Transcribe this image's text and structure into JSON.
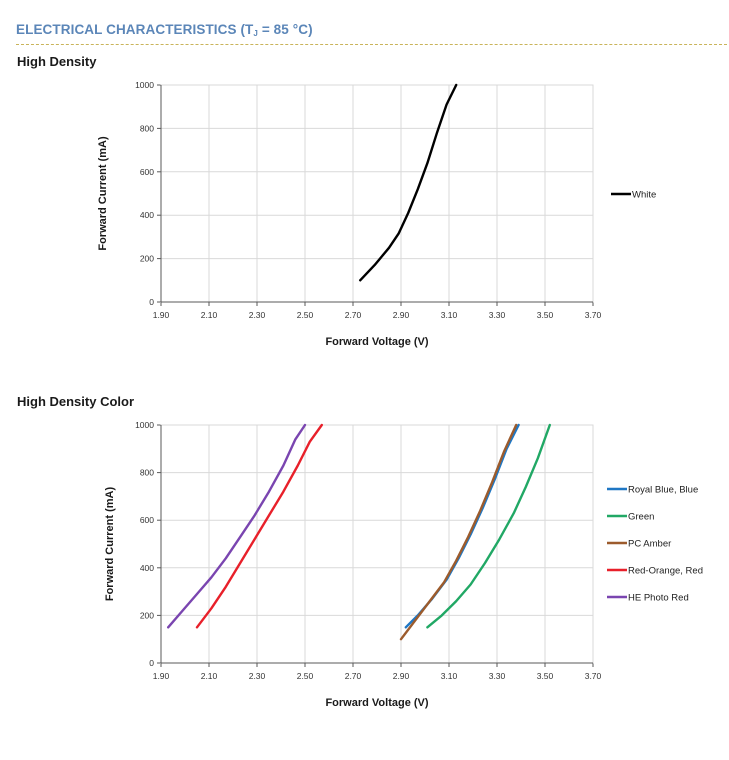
{
  "header": {
    "title_main": "ELECTRICAL CHARACTERISTICS (T",
    "title_sub": "J",
    "title_tail": " = 85 °C)"
  },
  "chart_data": [
    {
      "title": "High Density",
      "type": "line",
      "xlabel": "Forward Voltage (V)",
      "ylabel": "Forward Current (mA)",
      "xlim": [
        1.9,
        3.7
      ],
      "ylim": [
        0,
        1000
      ],
      "xticks": [
        "1.90",
        "2.10",
        "2.30",
        "2.50",
        "2.70",
        "2.90",
        "3.10",
        "3.30",
        "3.50",
        "3.70"
      ],
      "yticks": [
        "0",
        "200",
        "400",
        "600",
        "800",
        "1000"
      ],
      "grid": true,
      "legend_position": "right",
      "series": [
        {
          "name": "White",
          "color": "#000000",
          "x": [
            2.73,
            2.79,
            2.85,
            2.89,
            2.93,
            2.97,
            3.01,
            3.05,
            3.09,
            3.13
          ],
          "y": [
            100,
            170,
            250,
            315,
            410,
            520,
            640,
            780,
            910,
            1000
          ]
        }
      ]
    },
    {
      "title": "High Density Color",
      "type": "line",
      "xlabel": "Forward Voltage (V)",
      "ylabel": "Forward Current (mA)",
      "xlim": [
        1.9,
        3.7
      ],
      "ylim": [
        0,
        1000
      ],
      "xticks": [
        "1.90",
        "2.10",
        "2.30",
        "2.50",
        "2.70",
        "2.90",
        "3.10",
        "3.30",
        "3.50",
        "3.70"
      ],
      "yticks": [
        "0",
        "200",
        "400",
        "600",
        "800",
        "1000"
      ],
      "grid": true,
      "legend_position": "right",
      "series": [
        {
          "name": "Royal Blue, Blue",
          "color": "#1f77c4",
          "x": [
            2.92,
            2.97,
            3.03,
            3.09,
            3.14,
            3.19,
            3.24,
            3.29,
            3.34,
            3.39
          ],
          "y": [
            150,
            200,
            270,
            350,
            440,
            540,
            650,
            770,
            900,
            1000
          ]
        },
        {
          "name": "Green",
          "color": "#21a865",
          "x": [
            3.01,
            3.07,
            3.13,
            3.19,
            3.25,
            3.31,
            3.37,
            3.42,
            3.47,
            3.52
          ],
          "y": [
            150,
            200,
            260,
            330,
            420,
            520,
            630,
            740,
            860,
            1000
          ]
        },
        {
          "name": "PC Amber",
          "color": "#9c5b2c",
          "x": [
            2.9,
            2.96,
            3.02,
            3.08,
            3.13,
            3.18,
            3.23,
            3.28,
            3.33,
            3.38
          ],
          "y": [
            100,
            180,
            260,
            340,
            430,
            530,
            640,
            760,
            890,
            1000
          ]
        },
        {
          "name": "Red-Orange, Red",
          "color": "#e8202a",
          "x": [
            2.05,
            2.11,
            2.17,
            2.23,
            2.29,
            2.35,
            2.41,
            2.47,
            2.52,
            2.57
          ],
          "y": [
            150,
            230,
            320,
            420,
            520,
            620,
            720,
            830,
            930,
            1000
          ]
        },
        {
          "name": "HE Photo Red",
          "color": "#7a45b0",
          "x": [
            1.93,
            1.99,
            2.05,
            2.11,
            2.17,
            2.23,
            2.29,
            2.35,
            2.41,
            2.46,
            2.5
          ],
          "y": [
            150,
            220,
            290,
            360,
            440,
            530,
            620,
            720,
            830,
            940,
            1000
          ]
        }
      ]
    }
  ]
}
